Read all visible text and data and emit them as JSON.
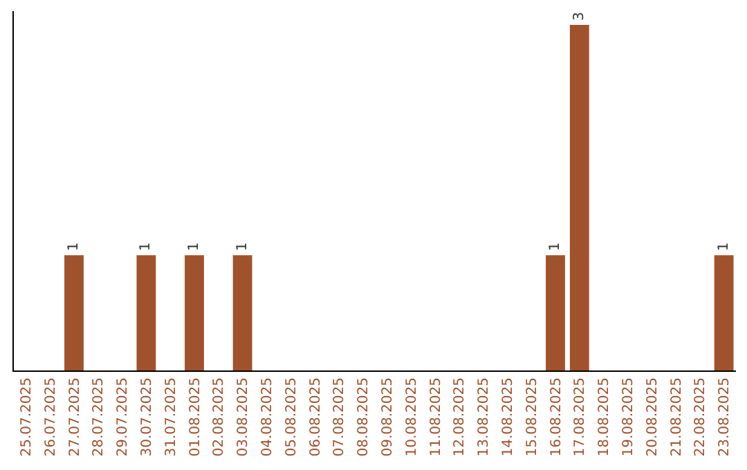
{
  "chart_data": {
    "type": "bar",
    "categories": [
      "25.07.2025",
      "26.07.2025",
      "27.07.2025",
      "28.07.2025",
      "29.07.2025",
      "30.07.2025",
      "31.07.2025",
      "01.08.2025",
      "02.08.2025",
      "03.08.2025",
      "04.08.2025",
      "05.08.2025",
      "06.08.2025",
      "07.08.2025",
      "08.08.2025",
      "09.08.2025",
      "10.08.2025",
      "11.08.2025",
      "12.08.2025",
      "13.08.2025",
      "14.08.2025",
      "15.08.2025",
      "16.08.2025",
      "17.08.2025",
      "18.08.2025",
      "19.08.2025",
      "20.08.2025",
      "21.08.2025",
      "22.08.2025",
      "23.08.2025"
    ],
    "values": [
      0,
      0,
      1,
      0,
      0,
      1,
      0,
      1,
      0,
      1,
      0,
      0,
      0,
      0,
      0,
      0,
      0,
      0,
      0,
      0,
      0,
      0,
      1,
      3,
      0,
      0,
      0,
      0,
      0,
      1
    ],
    "value_labels": [
      null,
      null,
      "1",
      null,
      null,
      "1",
      null,
      "1",
      null,
      "1",
      null,
      null,
      null,
      null,
      null,
      null,
      null,
      null,
      null,
      null,
      null,
      null,
      "1",
      "3",
      null,
      null,
      null,
      null,
      null,
      "1"
    ],
    "color": "#a0522d",
    "grid": false,
    "legend": false
  }
}
